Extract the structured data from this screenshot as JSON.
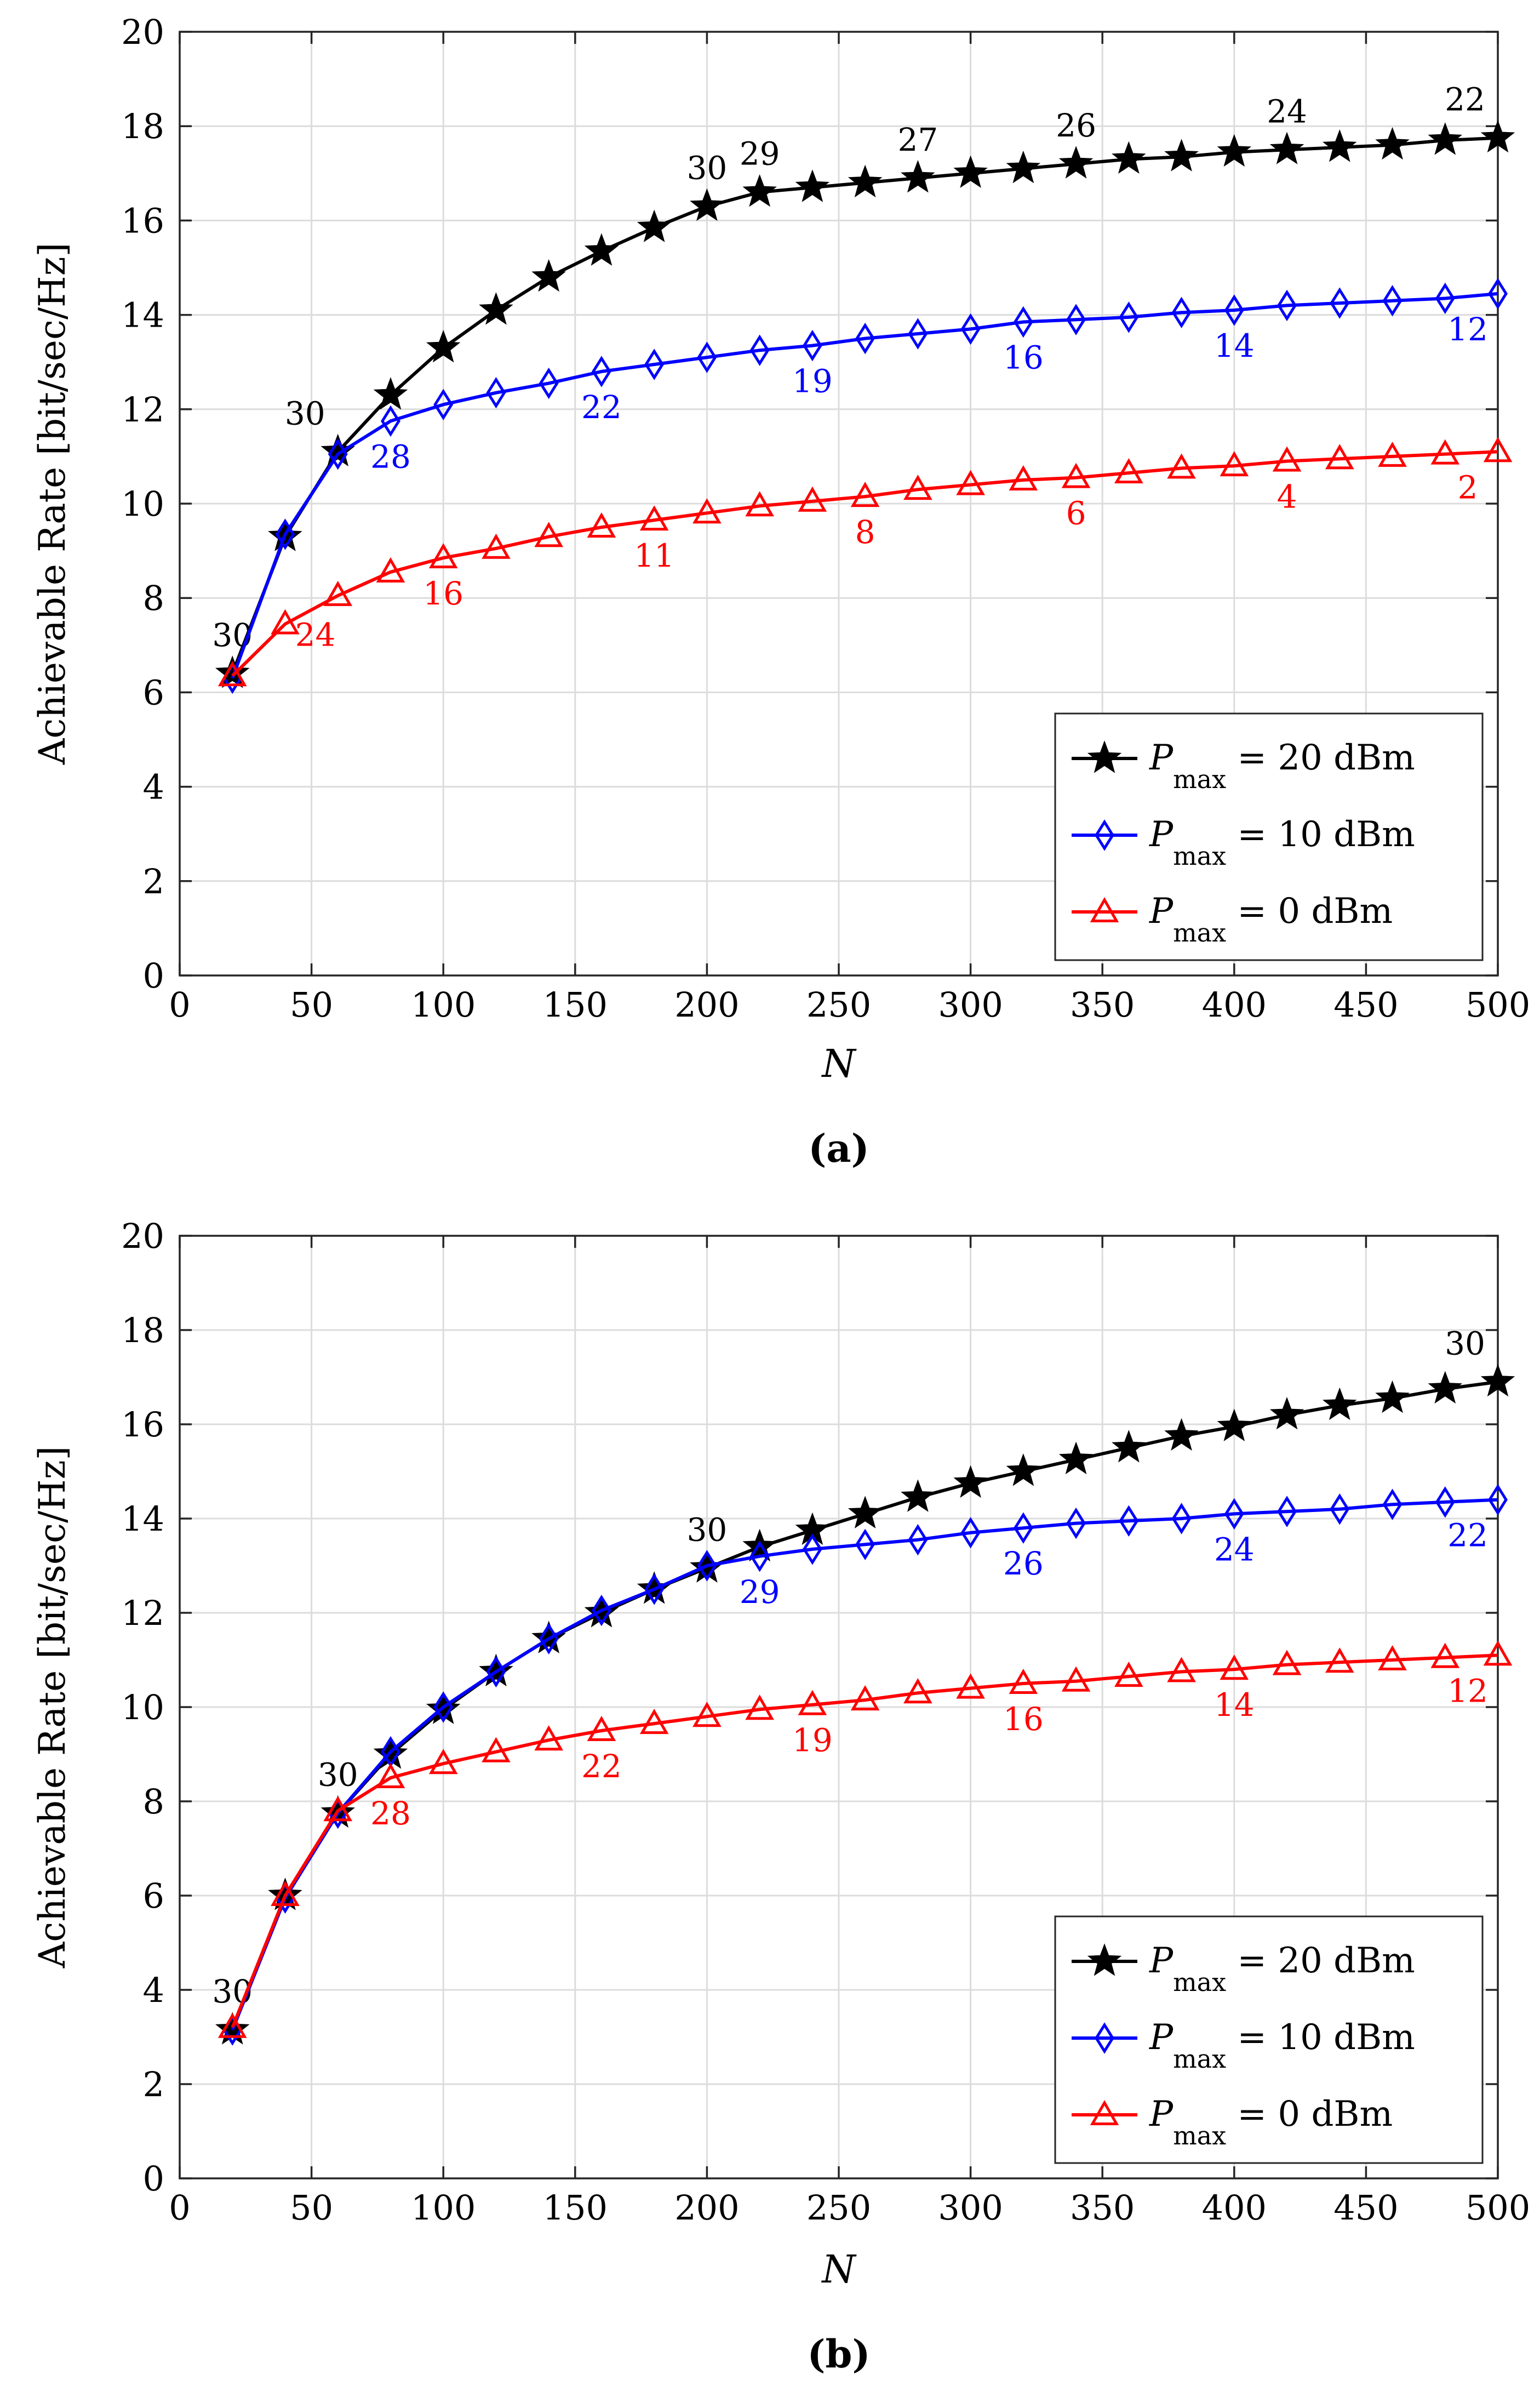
{
  "chart_data": [
    {
      "type": "line",
      "panel_label": "(a)",
      "xlabel": "N",
      "ylabel": "Achievable Rate [bit/sec/Hz]",
      "xlim": [
        0,
        500
      ],
      "ylim": [
        0,
        20
      ],
      "xticks": [
        "0",
        "50",
        "100",
        "150",
        "200",
        "250",
        "300",
        "350",
        "400",
        "450",
        "500"
      ],
      "yticks": [
        "0",
        "2",
        "4",
        "6",
        "8",
        "10",
        "12",
        "14",
        "16",
        "18",
        "20"
      ],
      "grid": true,
      "legend_position": "lower-right",
      "x": [
        20,
        40,
        60,
        80,
        100,
        120,
        140,
        160,
        180,
        200,
        220,
        240,
        260,
        280,
        300,
        320,
        340,
        360,
        380,
        400,
        420,
        440,
        460,
        480,
        500
      ],
      "series": [
        {
          "name_main": "P",
          "name_sub": "max",
          "name_rest": " = 20 dBm",
          "color": "#000000",
          "marker": "star",
          "values": [
            6.4,
            9.3,
            11.1,
            12.3,
            13.3,
            14.1,
            14.8,
            15.35,
            15.85,
            16.3,
            16.6,
            16.7,
            16.8,
            16.9,
            17.0,
            17.1,
            17.2,
            17.3,
            17.35,
            17.45,
            17.5,
            17.55,
            17.6,
            17.7,
            17.75
          ],
          "annotations": [
            {
              "x": 20,
              "y": 6.4,
              "label": "30",
              "pos": "above"
            },
            {
              "x": 60,
              "y": 11.1,
              "label": "30",
              "pos": "above-left"
            },
            {
              "x": 200,
              "y": 16.3,
              "label": "30",
              "pos": "above"
            },
            {
              "x": 220,
              "y": 16.6,
              "label": "29",
              "pos": "above"
            },
            {
              "x": 280,
              "y": 16.9,
              "label": "27",
              "pos": "above"
            },
            {
              "x": 340,
              "y": 17.2,
              "label": "26",
              "pos": "above"
            },
            {
              "x": 420,
              "y": 17.5,
              "label": "24",
              "pos": "above"
            },
            {
              "x": 500,
              "y": 17.75,
              "label": "22",
              "pos": "above-left"
            }
          ]
        },
        {
          "name_main": "P",
          "name_sub": "max",
          "name_rest": " = 10 dBm",
          "color": "#0000ff",
          "marker": "diamond",
          "values": [
            6.3,
            9.35,
            11.05,
            11.75,
            12.1,
            12.35,
            12.55,
            12.8,
            12.95,
            13.1,
            13.25,
            13.35,
            13.5,
            13.6,
            13.7,
            13.85,
            13.9,
            13.95,
            14.05,
            14.1,
            14.2,
            14.25,
            14.3,
            14.35,
            14.45
          ],
          "annotations": [
            {
              "x": 80,
              "y": 11.75,
              "label": "28",
              "pos": "below"
            },
            {
              "x": 160,
              "y": 12.8,
              "label": "22",
              "pos": "below"
            },
            {
              "x": 240,
              "y": 13.35,
              "label": "19",
              "pos": "below"
            },
            {
              "x": 320,
              "y": 13.85,
              "label": "16",
              "pos": "below"
            },
            {
              "x": 400,
              "y": 14.1,
              "label": "14",
              "pos": "below"
            },
            {
              "x": 500,
              "y": 14.45,
              "label": "12",
              "pos": "below-left"
            }
          ]
        },
        {
          "name_main": "P",
          "name_sub": "max",
          "name_rest": " = 0 dBm",
          "color": "#ff0000",
          "marker": "triangle",
          "values": [
            6.35,
            7.45,
            8.05,
            8.55,
            8.85,
            9.05,
            9.3,
            9.5,
            9.65,
            9.8,
            9.95,
            10.05,
            10.15,
            10.3,
            10.4,
            10.5,
            10.55,
            10.65,
            10.75,
            10.8,
            10.9,
            10.95,
            11.0,
            11.05,
            11.1
          ],
          "annotations": [
            {
              "x": 40,
              "y": 7.45,
              "label": "24",
              "pos": "below-right"
            },
            {
              "x": 100,
              "y": 8.85,
              "label": "16",
              "pos": "below"
            },
            {
              "x": 180,
              "y": 9.65,
              "label": "11",
              "pos": "below"
            },
            {
              "x": 260,
              "y": 10.15,
              "label": "8",
              "pos": "below"
            },
            {
              "x": 340,
              "y": 10.55,
              "label": "6",
              "pos": "below"
            },
            {
              "x": 420,
              "y": 10.9,
              "label": "4",
              "pos": "below"
            },
            {
              "x": 500,
              "y": 11.1,
              "label": "2",
              "pos": "below-left"
            }
          ]
        }
      ]
    },
    {
      "type": "line",
      "panel_label": "(b)",
      "xlabel": "N",
      "ylabel": "Achievable Rate [bit/sec/Hz]",
      "xlim": [
        0,
        500
      ],
      "ylim": [
        0,
        20
      ],
      "xticks": [
        "0",
        "50",
        "100",
        "150",
        "200",
        "250",
        "300",
        "350",
        "400",
        "450",
        "500"
      ],
      "yticks": [
        "0",
        "2",
        "4",
        "6",
        "8",
        "10",
        "12",
        "14",
        "16",
        "18",
        "20"
      ],
      "grid": true,
      "legend_position": "lower-right",
      "x": [
        20,
        40,
        60,
        80,
        100,
        120,
        140,
        160,
        180,
        200,
        220,
        240,
        260,
        280,
        300,
        320,
        340,
        360,
        380,
        400,
        420,
        440,
        460,
        480,
        500
      ],
      "series": [
        {
          "name_main": "P",
          "name_sub": "max",
          "name_rest": " = 20 dBm",
          "color": "#000000",
          "marker": "star",
          "values": [
            3.15,
            6.0,
            7.75,
            9.0,
            9.95,
            10.75,
            11.45,
            12.0,
            12.5,
            12.95,
            13.4,
            13.75,
            14.1,
            14.45,
            14.75,
            15.0,
            15.25,
            15.5,
            15.75,
            15.95,
            16.2,
            16.4,
            16.55,
            16.75,
            16.9
          ],
          "annotations": [
            {
              "x": 20,
              "y": 3.15,
              "label": "30",
              "pos": "above"
            },
            {
              "x": 60,
              "y": 7.75,
              "label": "30",
              "pos": "above"
            },
            {
              "x": 200,
              "y": 12.95,
              "label": "30",
              "pos": "above"
            },
            {
              "x": 500,
              "y": 16.9,
              "label": "30",
              "pos": "above-left"
            }
          ]
        },
        {
          "name_main": "P",
          "name_sub": "max",
          "name_rest": " = 10 dBm",
          "color": "#0000ff",
          "marker": "diamond",
          "values": [
            3.15,
            5.95,
            7.75,
            9.05,
            10.0,
            10.75,
            11.45,
            12.05,
            12.5,
            13.0,
            13.2,
            13.35,
            13.45,
            13.55,
            13.7,
            13.8,
            13.9,
            13.95,
            14.0,
            14.1,
            14.15,
            14.2,
            14.3,
            14.35,
            14.4
          ],
          "annotations": [
            {
              "x": 220,
              "y": 13.2,
              "label": "29",
              "pos": "below"
            },
            {
              "x": 320,
              "y": 13.8,
              "label": "26",
              "pos": "below"
            },
            {
              "x": 400,
              "y": 14.1,
              "label": "24",
              "pos": "below"
            },
            {
              "x": 500,
              "y": 14.4,
              "label": "22",
              "pos": "below-left"
            }
          ]
        },
        {
          "name_main": "P",
          "name_sub": "max",
          "name_rest": " = 0 dBm",
          "color": "#ff0000",
          "marker": "triangle",
          "values": [
            3.2,
            6.0,
            7.8,
            8.5,
            8.8,
            9.05,
            9.3,
            9.5,
            9.65,
            9.8,
            9.95,
            10.05,
            10.15,
            10.3,
            10.4,
            10.5,
            10.55,
            10.65,
            10.75,
            10.8,
            10.9,
            10.95,
            11.0,
            11.05,
            11.1
          ],
          "annotations": [
            {
              "x": 80,
              "y": 8.5,
              "label": "28",
              "pos": "below"
            },
            {
              "x": 160,
              "y": 9.5,
              "label": "22",
              "pos": "below"
            },
            {
              "x": 240,
              "y": 10.05,
              "label": "19",
              "pos": "below"
            },
            {
              "x": 320,
              "y": 10.5,
              "label": "16",
              "pos": "below"
            },
            {
              "x": 400,
              "y": 10.8,
              "label": "14",
              "pos": "below"
            },
            {
              "x": 500,
              "y": 11.1,
              "label": "12",
              "pos": "below-left"
            }
          ]
        }
      ]
    }
  ]
}
